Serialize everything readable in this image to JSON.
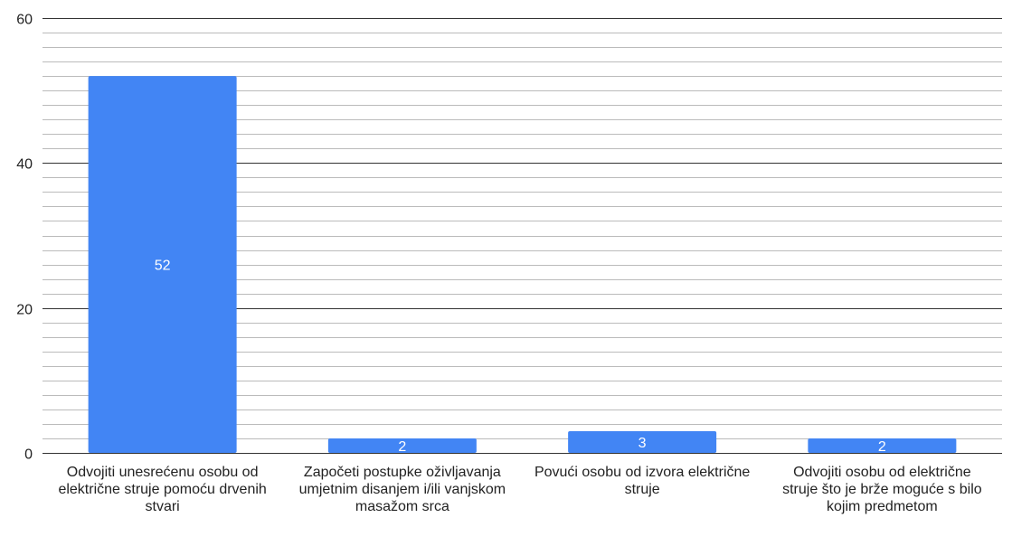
{
  "chart_data": {
    "type": "bar",
    "categories": [
      "Odvojiti unesrećenu osobu od električne struje pomoću drvenih stvari",
      "Započeti postupke oživljavanja umjetnim disanjem i/ili vanjskom masažom srca",
      "Povući osobu od izvora električne struje",
      "Odvojiti osobu od električne struje što je brže moguće s bilo kojim predmetom"
    ],
    "values": [
      52,
      2,
      3,
      2
    ],
    "data_labels": [
      "52",
      "2",
      "3",
      "2"
    ],
    "ylim": [
      0,
      60
    ],
    "y_major_ticks": [
      0,
      20,
      40,
      60
    ],
    "y_tick_labels": [
      "0",
      "20",
      "40",
      "60"
    ],
    "y_minor_step": 2,
    "grid": true,
    "legend": "none",
    "bar_color": "#4285f4",
    "major_grid_color": "#333333",
    "minor_grid_color": "#bbbbbb"
  }
}
